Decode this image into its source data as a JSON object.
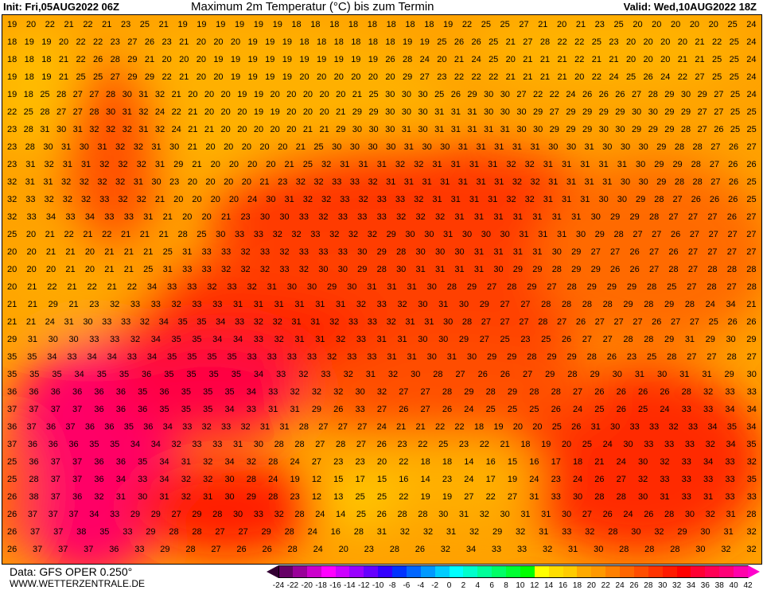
{
  "header": {
    "init": "Init: Fri,05AUG2022 06Z",
    "title": "Maximum 2m Temperatur (°C) bis zum Termin",
    "valid": "Valid: Wed,10AUG2022 18Z"
  },
  "footer": {
    "data_source": "Data: GFS OPER 0.250°",
    "website": "WWW.WETTERZENTRALE.DE"
  },
  "legend": {
    "labels": [
      "-24",
      "-22",
      "-20",
      "-18",
      "-16",
      "-14",
      "-12",
      "-10",
      "-8",
      "-6",
      "-4",
      "-2",
      "0",
      "2",
      "4",
      "6",
      "8",
      "10",
      "12",
      "14",
      "16",
      "18",
      "20",
      "22",
      "24",
      "26",
      "28",
      "30",
      "32",
      "34",
      "36",
      "38",
      "40",
      "42"
    ],
    "below_color": "#330033",
    "above_color": "#ff00cc",
    "colors": [
      "#660066",
      "#990099",
      "#cc00cc",
      "#ff00ff",
      "#cc00ff",
      "#9900ff",
      "#6600ff",
      "#3300ff",
      "#0033ff",
      "#0066ff",
      "#0099ff",
      "#00ccff",
      "#00ffff",
      "#00ffcc",
      "#00ff99",
      "#00ff66",
      "#00ff33",
      "#00ff00",
      "#ffff00",
      "#ffdd00",
      "#ffcc00",
      "#ffaa00",
      "#ff9900",
      "#ff8000",
      "#ff6600",
      "#ff4d00",
      "#ff3300",
      "#ff1a00",
      "#ff0000",
      "#ff0033",
      "#ff0055",
      "#ff0077",
      "#ff00aa"
    ]
  },
  "map": {
    "values_rows": [
      "19 20 22 21 22 21 23 25 21 19 19 19 19 19 19 18 18 18 18 18 18 18 18 19 22 25 25 27 21 20 21 23 25 20 20 20 20 20 25 24",
      "18 19 19 20 22 22 23 27 26 23 21 20 20 20 19 19 19 18 18 18 18 18 18 19 19 25 26 26 25 21 27 28 22 22 25 23 20 20 20 20 21 22 25 24",
      "18 18 18 21 22 26 28 29 21 20 20 20 19 19 19 19 19 19 19 19 19 19 26 28 24 20 21 24 25 20 21 21 21 22 21 21 20 20 20 21 21 25 25 24",
      "19 18 19 21 25 25 27 29 29 22 21 20 20 19 19 19 19 20 20 20 20 20 20 29 27 23 22 22 22 21 21 21 21 20 22 24 25 26 24 22 27 25 25 24",
      "19 18 25 28 27 27 28 30 31 32 21 20 20 20 19 19 20 20 20 20 20 21 25 30 30 30 25 26 29 30 30 27 22 22 24 26 26 26 27 28 29 30 29 27 25 24",
      "22 25 28 27 27 28 30 31 32 24 22 21 20 20 20 19 19 20 20 20 21 29 29 30 30 30 31 31 31 30 30 30 29 27 29 29 29 29 30 30 29 29 27 27 25 25",
      "23 28 31 30 31 32 32 32 31 32 24 21 21 20 20 20 20 20 21 21 29 30 30 30 31 30 31 31 31 31 31 30 30 29 29 29 30 30 29 29 29 28 27 26 25 25",
      "23 28 30 31 30 31 32 32 31 30 21 20 20 20 20 20 21 25 30 30 30 30 31 30 30 31 31 31 31 31 30 30 31 30 30 30 29 28 28 27 26 27",
      "23 31 32 31 31 32 32 32 31 29 21 20 20 20 20 21 25 32 31 31 31 32 32 31 31 31 31 32 32 31 31 31 31 31 30 29 29 28 27 26 26",
      "32 31 31 32 32 32 32 31 30 23 20 20 20 20 21 23 32 32 33 33 32 31 31 31 31 31 31 31 32 32 31 31 31 31 30 30 29 28 28 27 26 25",
      "32 33 32 32 32 33 32 32 21 20 20 20 20 24 30 31 32 32 33 32 33 33 32 31 31 31 31 32 32 31 31 31 30 30 29 28 27 26 26 26 25",
      "32 33 34 33 34 33 33 31 21 20 20 21 23 30 30 33 32 33 33 33 32 32 32 31 31 31 31 31 31 31 30 29 29 28 27 27 27 26 27",
      "25 20 21 22 21 22 21 21 21 28 25 30 33 33 32 32 33 32 32 32 29 30 30 31 30 30 30 31 31 31 30 29 28 27 27 26 27 27 27 27",
      "20 20 21 21 20 21 21 21 25 31 33 33 32 33 32 33 33 33 30 29 28 30 30 30 31 31 31 31 30 29 27 27 26 27 26 27 27 27 27",
      "20 20 20 21 20 21 21 25 31 33 33 32 32 32 33 32 30 30 29 28 30 31 31 31 31 30 29 29 28 29 29 26 26 27 28 27 28 28 28",
      "20 21 22 21 22 21 22 34 33 33 32 33 32 31 30 30 29 30 31 31 31 30 28 29 27 28 29 27 28 29 29 29 28 25 27 28 27 28",
      "21 21 29 21 23 32 33 33 32 33 33 31 31 31 31 31 31 32 33 32 30 31 30 29 27 27 28 28 28 28 29 28 29 28 24 34 21",
      "21 21 24 31 30 33 33 32 34 35 35 34 33 32 32 31 31 32 33 33 32 31 31 30 28 27 27 27 28 27 26 27 27 27 26 27 27 25 26 26",
      "29 31 30 30 33 33 32 34 35 35 34 34 33 32 31 31 32 33 31 31 30 30 29 27 25 23 25 26 27 27 28 28 29 31 29 30 29",
      "35 35 34 33 34 34 33 34 35 35 35 35 33 33 33 33 32 33 33 31 31 30 31 30 29 29 28 29 29 28 26 23 25 28 27 27 28 27",
      "35 35 35 34 35 35 36 35 35 35 35 34 33 32 33 32 31 32 30 28 27 26 26 27 29 28 29 30 31 30 31 31 29 30",
      "36 36 36 36 36 36 35 36 35 35 35 34 33 32 32 32 30 32 27 27 28 29 28 29 28 28 27 26 26 26 26 28 32 33 33",
      "37 37 37 37 36 36 36 35 35 35 34 33 31 31 29 26 33 27 26 27 26 24 25 25 25 26 24 25 26 25 24 33 33 34 34",
      "36 37 36 37 36 36 35 36 34 33 32 33 32 31 31 28 27 27 27 24 21 21 22 22 18 19 20 20 25 26 31 30 33 33 32 33 34 35 34",
      "37 36 36 36 35 35 34 34 32 33 33 31 30 28 28 27 28 27 26 23 22 25 23 22 21 18 19 20 25 24 30 33 33 33 32 34 35",
      "25 36 37 37 36 36 35 34 31 32 34 32 28 24 27 23 23 20 22 18 18 14 16 15 16 17 18 21 24 30 32 33 34 33 32",
      "25 28 37 37 36 34 33 34 32 32 30 28 24 19 12 15 17 15 16 14 23 24 17 19 24 23 24 26 27 32 33 33 33 33 35",
      "26 38 37 36 32 31 30 31 32 31 30 29 28 23 12 13 25 25 22 19 19 27 22 27 31 33 30 28 28 30 31 33 31 33 33",
      "26 37 37 37 34 33 29 29 27 29 28 30 33 32 28 24 14 25 26 28 28 30 31 32 30 31 31 30 27 26 24 26 28 30 32 31 28",
      "26 37 37 38 35 33 29 28 28 27 27 29 28 24 16 28 31 32 32 31 32 29 32 31 33 32 28 30 32 29 30 31 32",
      "26 37 37 37 36 33 29 28 27 26 26 28 24 20 23 28 26 32 34 33 33 32 31 30 28 28 28 30 32 32"
    ]
  }
}
